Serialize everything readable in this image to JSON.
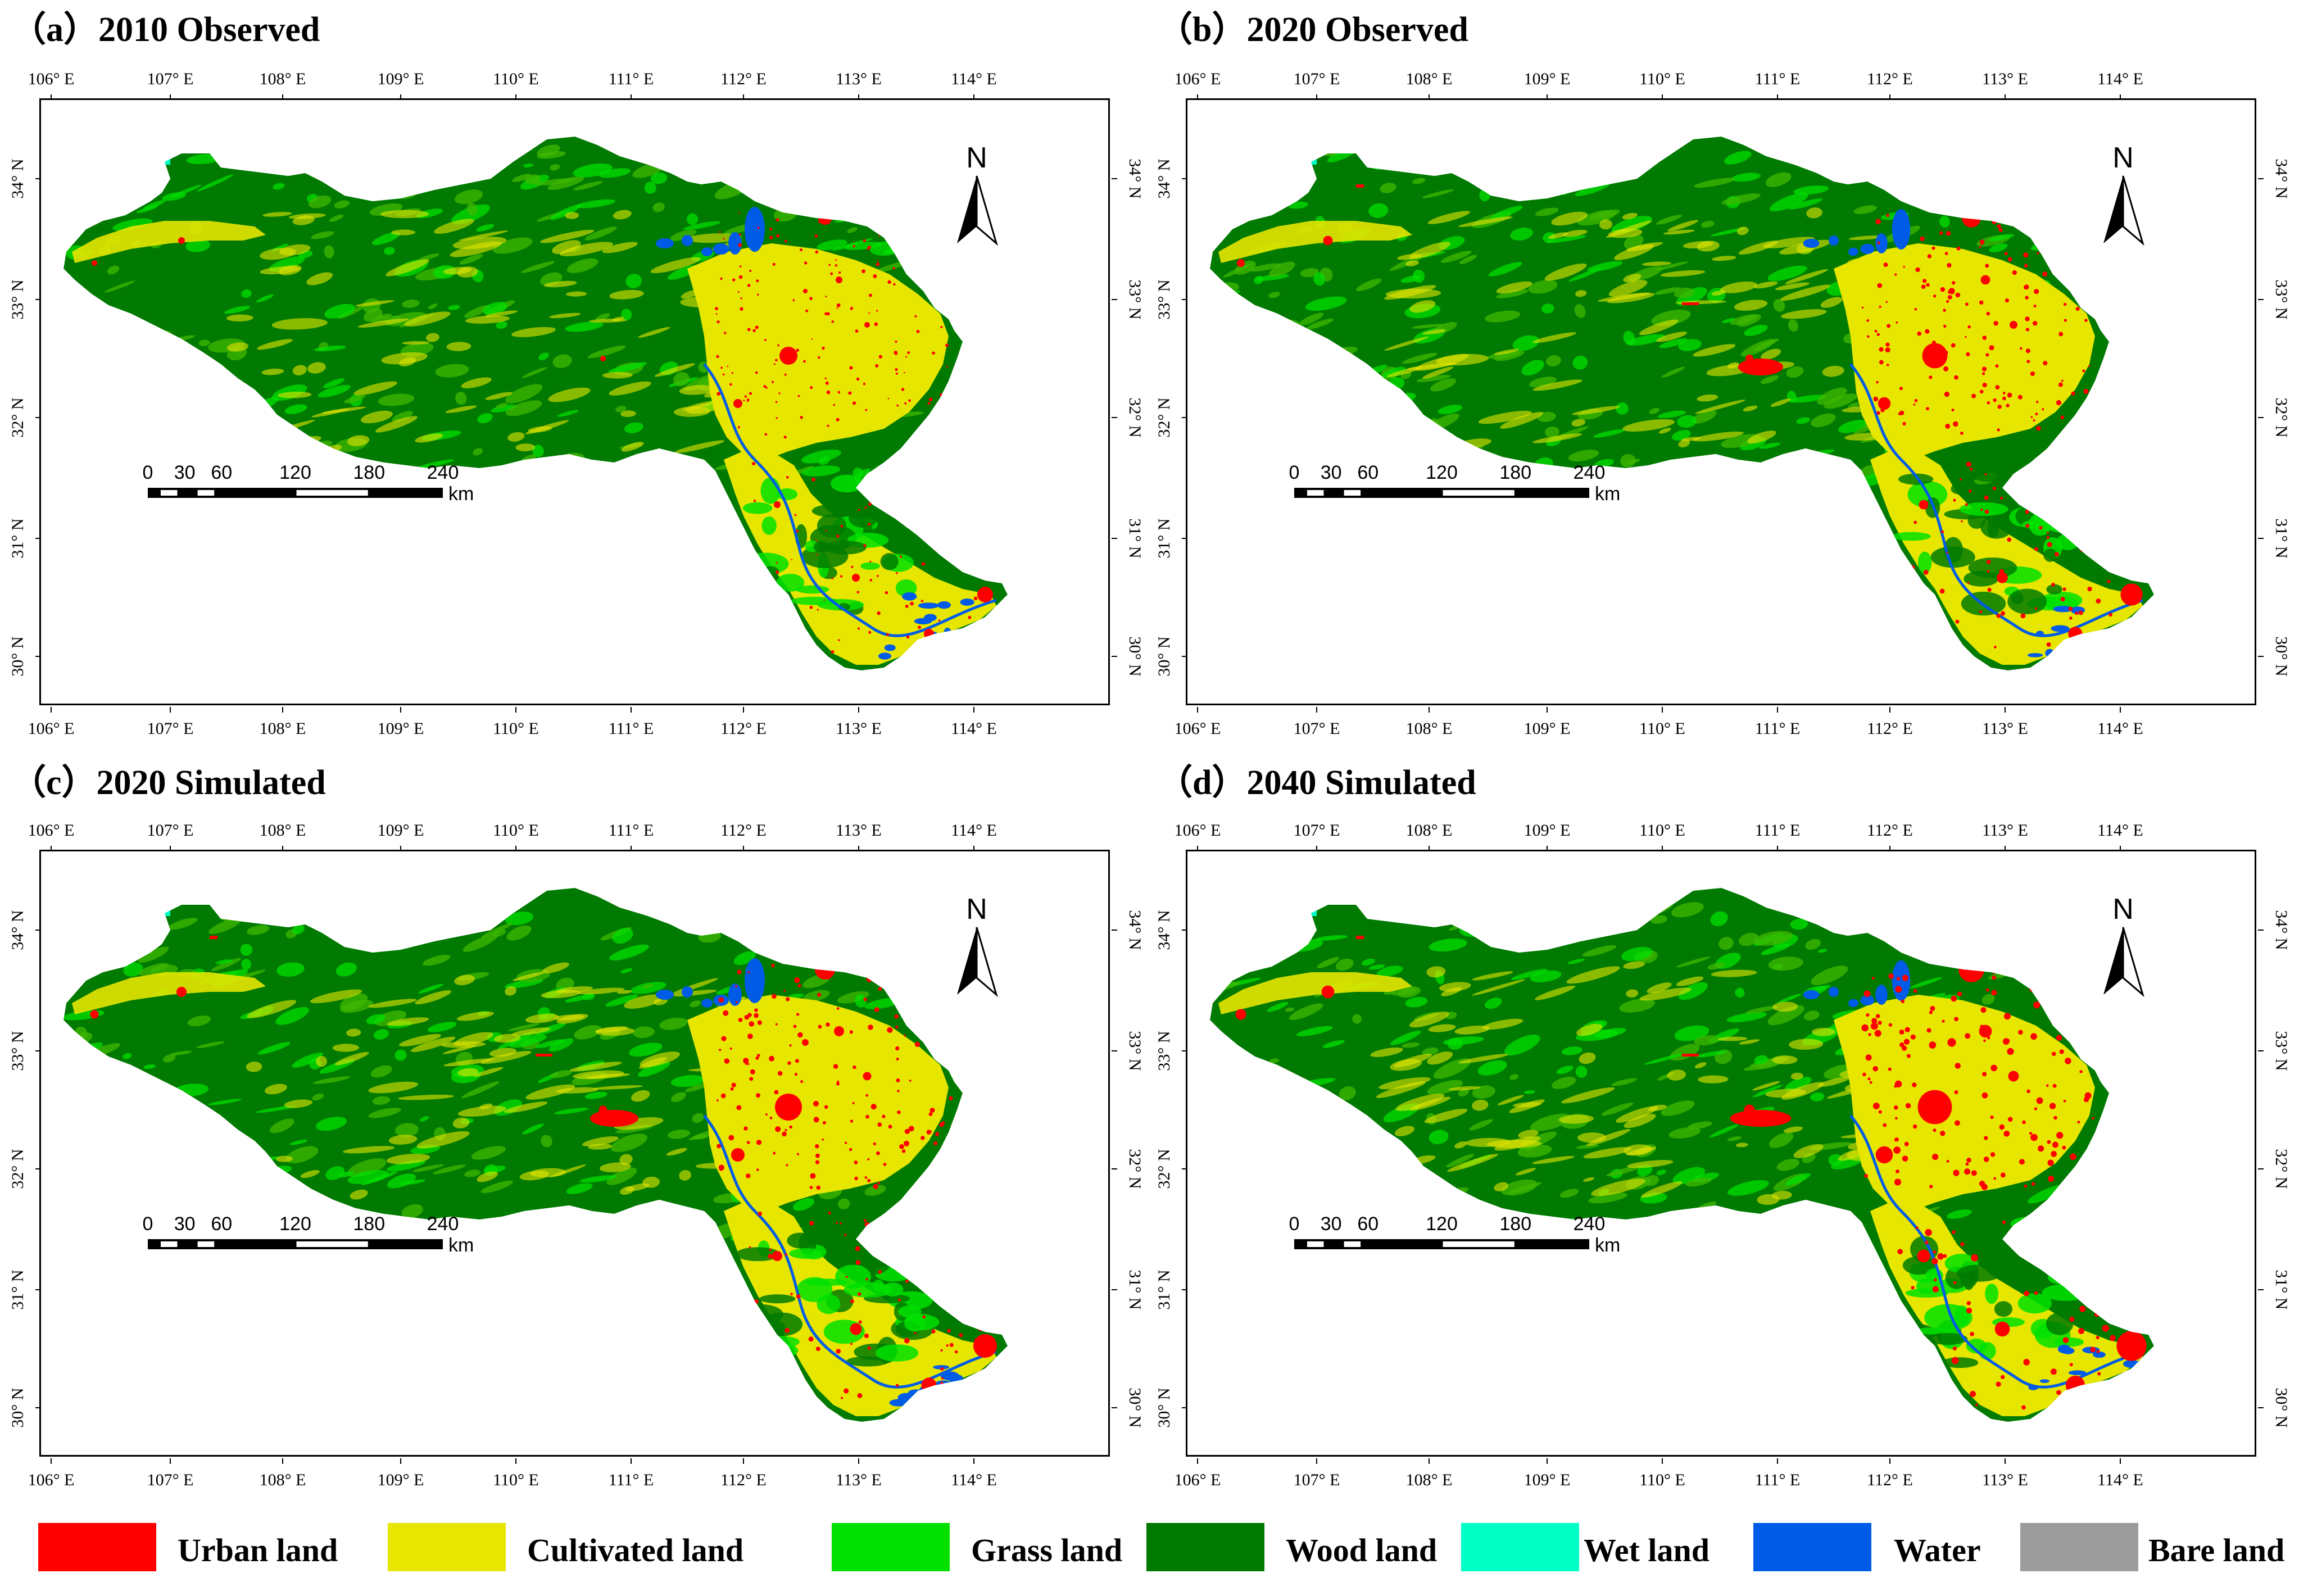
{
  "panels": [
    {
      "title": "（a）2010 Observed",
      "variant": "2010obs"
    },
    {
      "title": "（b）2020  Observed",
      "variant": "2020obs"
    },
    {
      "title": "（c）2020 Simulated",
      "variant": "2020sim"
    },
    {
      "title": "（d）2040 Simulated",
      "variant": "2040sim"
    }
  ],
  "axes": {
    "lon_labels": [
      "106° E",
      "107° E",
      "108° E",
      "109° E",
      "110° E",
      "111° E",
      "112° E",
      "113° E",
      "114° E"
    ],
    "lat_labels": [
      "30° N",
      "31° N",
      "32° N",
      "33° N",
      "34° N"
    ]
  },
  "north_arrow": {
    "label": "N"
  },
  "scale_bar": {
    "ticks": [
      "0",
      "30",
      "60",
      "120",
      "180",
      "240"
    ],
    "unit": "km"
  },
  "legend": [
    {
      "label": "Urban land",
      "color": "#ff0000"
    },
    {
      "label": "Cultivated land",
      "color": "#e6e600"
    },
    {
      "label": "Grass land",
      "color": "#00e000"
    },
    {
      "label": "Wood land",
      "color": "#007a00"
    },
    {
      "label": "Wet land",
      "color": "#00ffc5"
    },
    {
      "label": "Water",
      "color": "#005ce6"
    },
    {
      "label": "Bare land",
      "color": "#9c9c9c"
    }
  ]
}
